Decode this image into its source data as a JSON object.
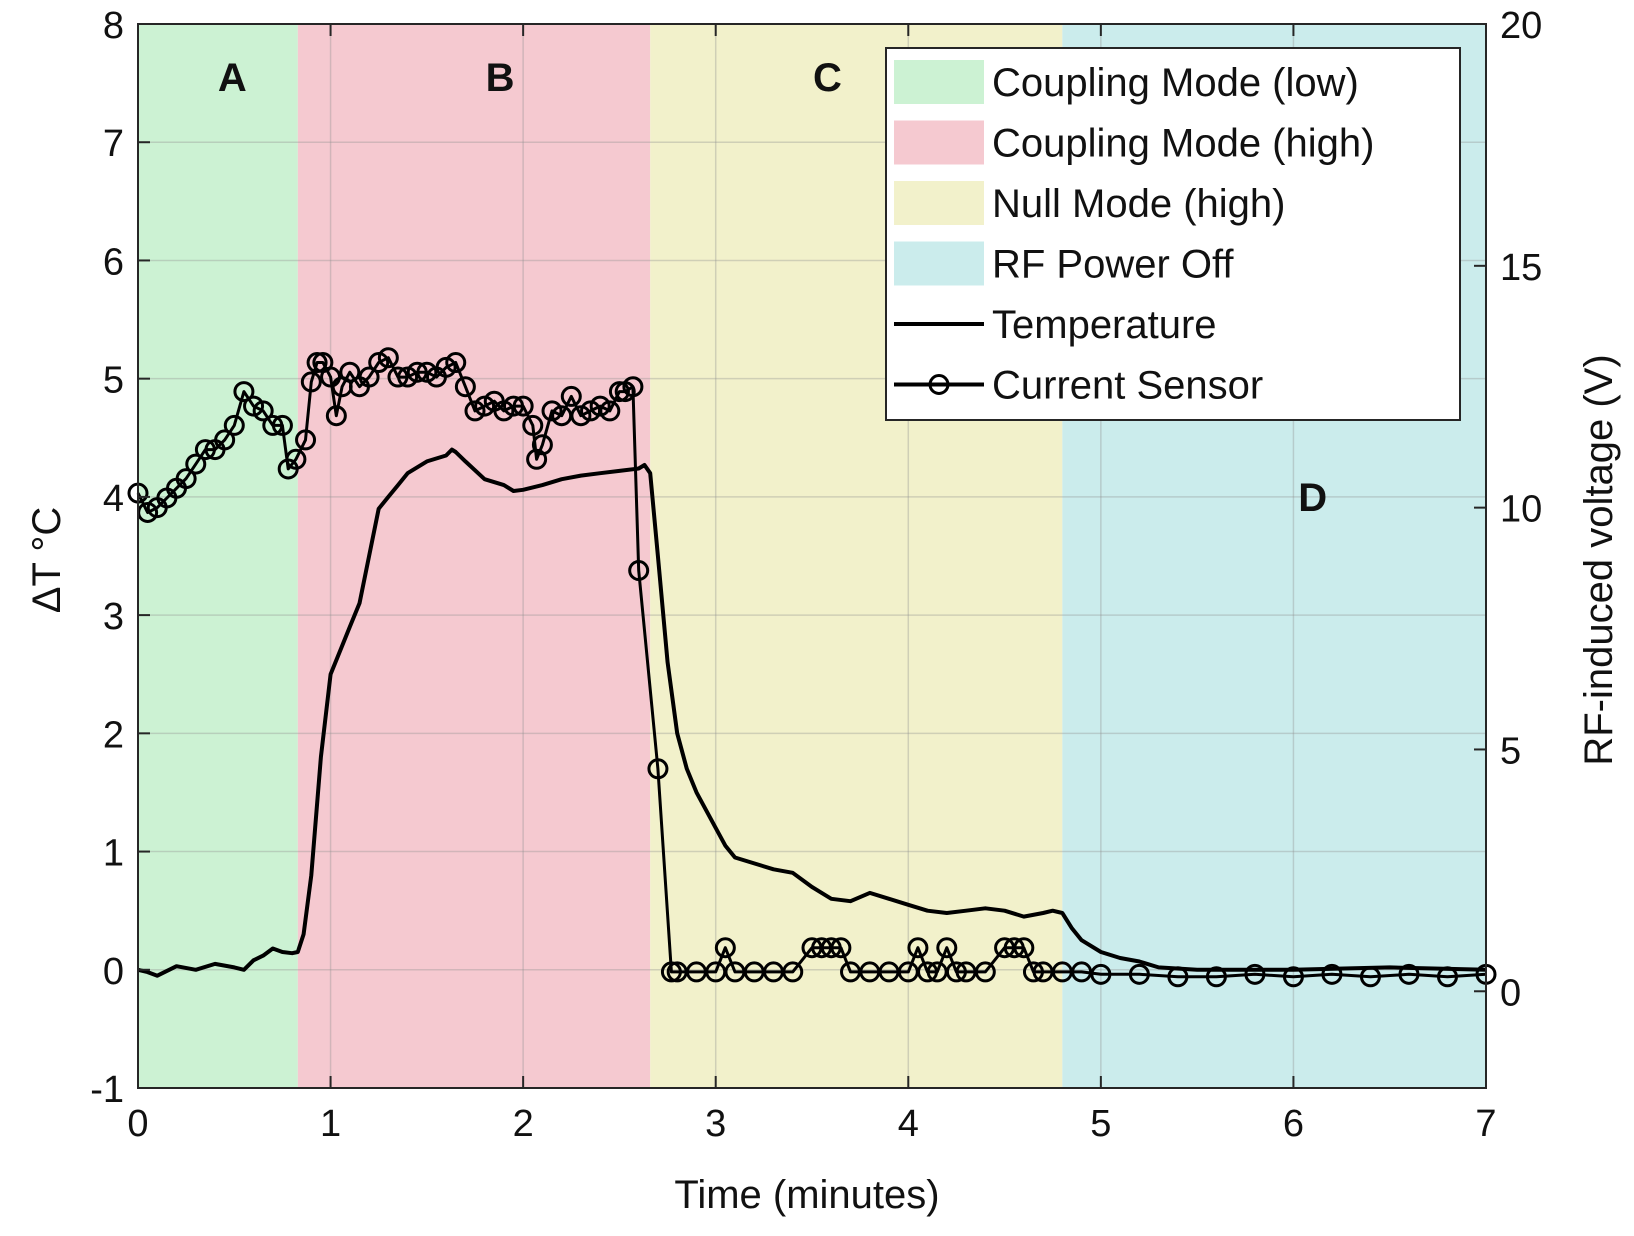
{
  "chart_data": {
    "type": "line",
    "xlabel": "Time (minutes)",
    "ylabel_left": "ΔT °C",
    "ylabel_right": "RF-induced voltage (V)",
    "xlim": [
      0,
      7
    ],
    "ylim_left": [
      -1,
      8
    ],
    "ylim_right": [
      -2,
      20
    ],
    "x_ticks": [
      "0",
      "1",
      "2",
      "3",
      "4",
      "5",
      "6",
      "7"
    ],
    "y_left_ticks": [
      "-1",
      "0",
      "1",
      "2",
      "3",
      "4",
      "5",
      "6",
      "7",
      "8"
    ],
    "y_right_ticks": [
      "0",
      "5",
      "10",
      "15",
      "20"
    ],
    "grid": true,
    "legend_position": "top-right",
    "regions": [
      {
        "label": "A",
        "name": "Coupling Mode (low)",
        "x_start": 0,
        "x_end": 0.83,
        "color": "#ccf2d3"
      },
      {
        "label": "B",
        "name": "Coupling Mode (high)",
        "x_start": 0.83,
        "x_end": 2.66,
        "color": "#f5c9d0"
      },
      {
        "label": "C",
        "name": "Null Mode (high)",
        "x_start": 2.66,
        "x_end": 4.8,
        "color": "#f2f1cb"
      },
      {
        "label": "D",
        "name": "RF Power Off",
        "x_start": 4.8,
        "x_end": 7,
        "color": "#cbecec"
      }
    ],
    "series": [
      {
        "name": "Temperature",
        "axis": "left",
        "marker": "none",
        "x": [
          0,
          0.05,
          0.1,
          0.2,
          0.3,
          0.4,
          0.5,
          0.55,
          0.6,
          0.65,
          0.7,
          0.75,
          0.8,
          0.83,
          0.86,
          0.9,
          0.95,
          1.0,
          1.05,
          1.1,
          1.15,
          1.2,
          1.25,
          1.3,
          1.35,
          1.4,
          1.5,
          1.6,
          1.63,
          1.65,
          1.7,
          1.8,
          1.9,
          1.95,
          2.0,
          2.1,
          2.2,
          2.3,
          2.4,
          2.5,
          2.6,
          2.63,
          2.66,
          2.7,
          2.75,
          2.8,
          2.85,
          2.9,
          2.95,
          3.0,
          3.05,
          3.1,
          3.2,
          3.3,
          3.4,
          3.5,
          3.6,
          3.7,
          3.8,
          3.9,
          4.0,
          4.1,
          4.2,
          4.3,
          4.4,
          4.5,
          4.6,
          4.7,
          4.75,
          4.8,
          4.85,
          4.9,
          5.0,
          5.1,
          5.2,
          5.3,
          5.5,
          6.0,
          6.5,
          7.0
        ],
        "y": [
          0,
          -0.02,
          -0.05,
          0.03,
          0.0,
          0.05,
          0.02,
          0.0,
          0.08,
          0.12,
          0.18,
          0.15,
          0.14,
          0.15,
          0.3,
          0.8,
          1.8,
          2.5,
          2.7,
          2.9,
          3.1,
          3.5,
          3.9,
          4.0,
          4.1,
          4.2,
          4.3,
          4.35,
          4.4,
          4.38,
          4.3,
          4.15,
          4.1,
          4.05,
          4.06,
          4.1,
          4.15,
          4.18,
          4.2,
          4.22,
          4.24,
          4.27,
          4.2,
          3.5,
          2.6,
          2.0,
          1.7,
          1.5,
          1.35,
          1.2,
          1.05,
          0.95,
          0.9,
          0.85,
          0.82,
          0.7,
          0.6,
          0.58,
          0.65,
          0.6,
          0.55,
          0.5,
          0.48,
          0.5,
          0.52,
          0.5,
          0.45,
          0.48,
          0.5,
          0.48,
          0.35,
          0.25,
          0.15,
          0.1,
          0.07,
          0.02,
          0.0,
          0.0,
          0.02,
          0.0
        ]
      },
      {
        "name": "Current Sensor",
        "axis": "right",
        "marker": "circle",
        "x": [
          0.0,
          0.05,
          0.1,
          0.15,
          0.2,
          0.25,
          0.3,
          0.35,
          0.4,
          0.45,
          0.5,
          0.55,
          0.6,
          0.65,
          0.7,
          0.75,
          0.78,
          0.82,
          0.87,
          0.9,
          0.93,
          0.96,
          1.0,
          1.03,
          1.06,
          1.1,
          1.15,
          1.2,
          1.25,
          1.3,
          1.35,
          1.4,
          1.45,
          1.5,
          1.55,
          1.6,
          1.65,
          1.7,
          1.75,
          1.8,
          1.85,
          1.9,
          1.95,
          2.0,
          2.05,
          2.07,
          2.1,
          2.15,
          2.2,
          2.25,
          2.3,
          2.35,
          2.4,
          2.45,
          2.5,
          2.53,
          2.57,
          2.6,
          2.7,
          2.77,
          2.8,
          2.9,
          3.0,
          3.05,
          3.1,
          3.2,
          3.3,
          3.4,
          3.5,
          3.55,
          3.6,
          3.65,
          3.7,
          3.8,
          3.9,
          4.0,
          4.05,
          4.1,
          4.15,
          4.2,
          4.25,
          4.3,
          4.4,
          4.5,
          4.55,
          4.6,
          4.65,
          4.7,
          4.8,
          4.9,
          5.0,
          5.2,
          5.4,
          5.6,
          5.8,
          6.0,
          6.2,
          6.4,
          6.6,
          6.8,
          7.0
        ],
        "y": [
          10.3,
          9.9,
          10.0,
          10.2,
          10.4,
          10.6,
          10.9,
          11.2,
          11.2,
          11.4,
          11.7,
          12.4,
          12.1,
          12.0,
          11.7,
          11.7,
          10.8,
          11.0,
          11.4,
          12.6,
          13.0,
          13.0,
          12.7,
          11.9,
          12.5,
          12.8,
          12.5,
          12.7,
          13.0,
          13.1,
          12.7,
          12.7,
          12.8,
          12.8,
          12.7,
          12.9,
          13.0,
          12.5,
          12.0,
          12.1,
          12.2,
          12.0,
          12.1,
          12.1,
          11.7,
          11.0,
          11.3,
          12.0,
          11.9,
          12.3,
          11.9,
          12.0,
          12.1,
          12.0,
          12.4,
          12.4,
          12.5,
          8.7,
          4.6,
          0.4,
          0.4,
          0.4,
          0.4,
          0.9,
          0.4,
          0.4,
          0.4,
          0.4,
          0.9,
          0.9,
          0.9,
          0.9,
          0.4,
          0.4,
          0.4,
          0.4,
          0.9,
          0.4,
          0.4,
          0.9,
          0.4,
          0.4,
          0.4,
          0.9,
          0.9,
          0.9,
          0.4,
          0.4,
          0.4,
          0.4,
          0.35,
          0.35,
          0.3,
          0.3,
          0.35,
          0.3,
          0.35,
          0.3,
          0.35,
          0.3,
          0.35
        ]
      }
    ]
  }
}
